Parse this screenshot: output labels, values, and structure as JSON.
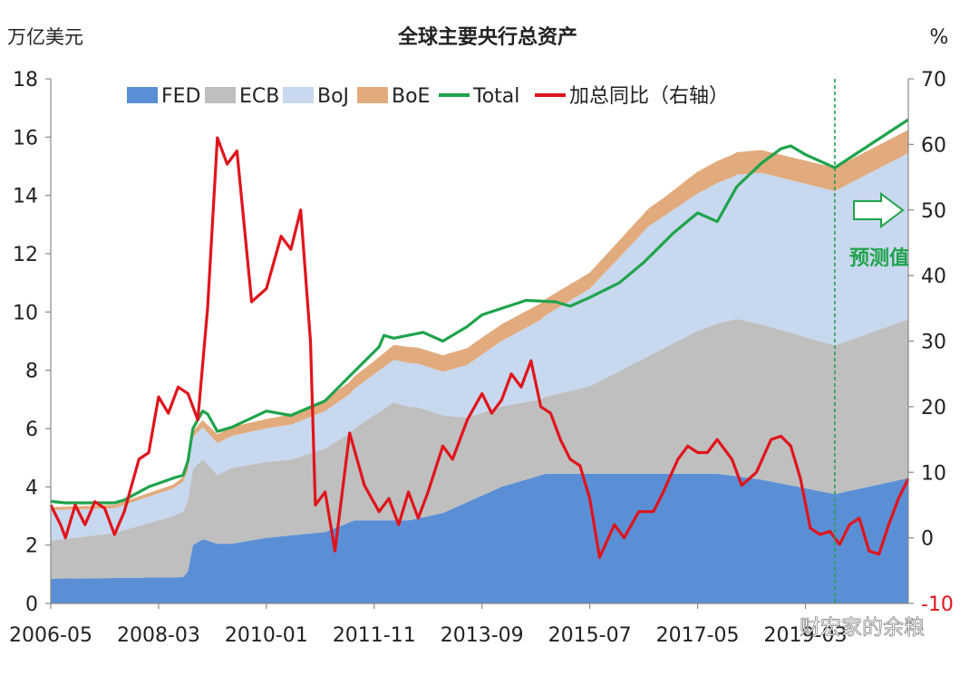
{
  "chart_data": {
    "type": "area",
    "title": "全球主要央行总资产",
    "ylabel_left": "万亿美元",
    "ylabel_right": "%",
    "ylim_left": [
      0,
      18
    ],
    "ylim_right": [
      -10,
      70
    ],
    "yticks_left": [
      "0",
      "2",
      "4",
      "6",
      "8",
      "10",
      "12",
      "14",
      "16",
      "18"
    ],
    "yticks_right": [
      "-10",
      "0",
      "10",
      "20",
      "30",
      "40",
      "50",
      "60",
      "70"
    ],
    "xticks": [
      "2006-05",
      "2008-03",
      "2010-01",
      "2011-11",
      "2013-09",
      "2015-07",
      "2017-05",
      "2019-03"
    ],
    "x_start": "2006-05",
    "x_end": "2020-12",
    "legend_position": "top",
    "forecast_start": "2019-09",
    "forecast_label": "预测值",
    "watermark": "财宏家的余粮",
    "colors": {
      "FED": "#5a8fd6",
      "ECB": "#bfbfbf",
      "BoJ": "#c8d8ee",
      "BoE": "#e2ab7d",
      "Total": "#1fa34c",
      "YoY": "#e0141c",
      "forecast": "#1fa34c"
    },
    "series": [
      {
        "name": "FED",
        "kind": "stacked-area",
        "points": [
          [
            "2006-05",
            0.85
          ],
          [
            "2007-06",
            0.87
          ],
          [
            "2008-08",
            0.9
          ],
          [
            "2008-09",
            1.1
          ],
          [
            "2008-10",
            2.0
          ],
          [
            "2008-12",
            2.2
          ],
          [
            "2009-03",
            2.05
          ],
          [
            "2009-06",
            2.05
          ],
          [
            "2010-01",
            2.25
          ],
          [
            "2011-01",
            2.45
          ],
          [
            "2011-07",
            2.85
          ],
          [
            "2012-06",
            2.85
          ],
          [
            "2013-01",
            3.1
          ],
          [
            "2014-01",
            4.0
          ],
          [
            "2014-10",
            4.45
          ],
          [
            "2017-09",
            4.45
          ],
          [
            "2018-06",
            4.25
          ],
          [
            "2019-09",
            3.75
          ],
          [
            "2020-12",
            4.3
          ]
        ]
      },
      {
        "name": "ECB",
        "kind": "stacked-area",
        "points": [
          [
            "2006-05",
            1.3
          ],
          [
            "2007-06",
            1.55
          ],
          [
            "2008-06",
            2.1
          ],
          [
            "2008-08",
            2.25
          ],
          [
            "2008-10",
            2.6
          ],
          [
            "2008-12",
            2.75
          ],
          [
            "2009-03",
            2.35
          ],
          [
            "2009-06",
            2.6
          ],
          [
            "2010-06",
            2.6
          ],
          [
            "2011-06",
            3.05
          ],
          [
            "2012-03",
            4.05
          ],
          [
            "2012-08",
            3.8
          ],
          [
            "2013-06",
            2.9
          ],
          [
            "2014-09",
            2.6
          ],
          [
            "2015-07",
            3.0
          ],
          [
            "2017-05",
            4.9
          ],
          [
            "2018-01",
            5.4
          ],
          [
            "2019-09",
            5.1
          ],
          [
            "2020-12",
            5.45
          ]
        ]
      },
      {
        "name": "BoJ",
        "kind": "stacked-area",
        "points": [
          [
            "2006-05",
            1.05
          ],
          [
            "2007-06",
            0.85
          ],
          [
            "2008-06",
            0.95
          ],
          [
            "2008-10",
            1.1
          ],
          [
            "2009-06",
            1.1
          ],
          [
            "2010-06",
            1.2
          ],
          [
            "2011-06",
            1.35
          ],
          [
            "2012-06",
            1.5
          ],
          [
            "2013-01",
            1.5
          ],
          [
            "2013-09",
            2.0
          ],
          [
            "2014-06",
            2.55
          ],
          [
            "2015-07",
            3.35
          ],
          [
            "2016-07",
            4.45
          ],
          [
            "2017-12",
            4.9
          ],
          [
            "2018-06",
            5.2
          ],
          [
            "2019-09",
            5.3
          ],
          [
            "2020-12",
            5.7
          ]
        ]
      },
      {
        "name": "BoE",
        "kind": "stacked-area",
        "points": [
          [
            "2006-05",
            0.1
          ],
          [
            "2008-06",
            0.13
          ],
          [
            "2009-03",
            0.3
          ],
          [
            "2010-01",
            0.32
          ],
          [
            "2011-11",
            0.45
          ],
          [
            "2012-06",
            0.55
          ],
          [
            "2013-09",
            0.58
          ],
          [
            "2015-07",
            0.55
          ],
          [
            "2016-10",
            0.63
          ],
          [
            "2017-05",
            0.75
          ],
          [
            "2018-05",
            0.78
          ],
          [
            "2019-09",
            0.8
          ],
          [
            "2020-12",
            0.8
          ]
        ]
      },
      {
        "name": "Total",
        "kind": "line-left",
        "points": [
          [
            "2006-05",
            3.5
          ],
          [
            "2006-08",
            3.45
          ],
          [
            "2007-06",
            3.45
          ],
          [
            "2007-08",
            3.55
          ],
          [
            "2008-01",
            4.0
          ],
          [
            "2008-06",
            4.3
          ],
          [
            "2008-08",
            4.4
          ],
          [
            "2008-09",
            4.9
          ],
          [
            "2008-10",
            6.0
          ],
          [
            "2008-12",
            6.6
          ],
          [
            "2009-01",
            6.5
          ],
          [
            "2009-03",
            5.9
          ],
          [
            "2009-06",
            6.05
          ],
          [
            "2010-01",
            6.6
          ],
          [
            "2010-06",
            6.45
          ],
          [
            "2011-01",
            6.95
          ],
          [
            "2011-06",
            7.8
          ],
          [
            "2011-12",
            8.8
          ],
          [
            "2012-01",
            9.2
          ],
          [
            "2012-03",
            9.1
          ],
          [
            "2012-09",
            9.3
          ],
          [
            "2013-01",
            9.0
          ],
          [
            "2013-06",
            9.5
          ],
          [
            "2013-09",
            9.9
          ],
          [
            "2014-06",
            10.4
          ],
          [
            "2014-12",
            10.35
          ],
          [
            "2015-03",
            10.2
          ],
          [
            "2015-07",
            10.5
          ],
          [
            "2016-01",
            11.0
          ],
          [
            "2016-06",
            11.7
          ],
          [
            "2016-12",
            12.7
          ],
          [
            "2017-05",
            13.4
          ],
          [
            "2017-09",
            13.1
          ],
          [
            "2018-01",
            14.3
          ],
          [
            "2018-06",
            15.1
          ],
          [
            "2018-10",
            15.6
          ],
          [
            "2018-12",
            15.7
          ],
          [
            "2019-03",
            15.4
          ],
          [
            "2019-09",
            14.95
          ],
          [
            "2020-12",
            16.6
          ]
        ]
      },
      {
        "name": "加总同比（右轴）",
        "kind": "line-right",
        "points": [
          [
            "2006-05",
            5
          ],
          [
            "2006-07",
            2
          ],
          [
            "2006-08",
            0
          ],
          [
            "2006-10",
            5
          ],
          [
            "2006-12",
            2
          ],
          [
            "2007-02",
            5.5
          ],
          [
            "2007-04",
            4.5
          ],
          [
            "2007-06",
            0.5
          ],
          [
            "2007-08",
            4
          ],
          [
            "2007-11",
            12
          ],
          [
            "2008-01",
            13
          ],
          [
            "2008-03",
            21.5
          ],
          [
            "2008-05",
            19
          ],
          [
            "2008-07",
            23
          ],
          [
            "2008-09",
            22
          ],
          [
            "2008-11",
            18
          ],
          [
            "2009-01",
            35
          ],
          [
            "2009-03",
            61
          ],
          [
            "2009-05",
            57
          ],
          [
            "2009-07",
            59
          ],
          [
            "2009-10",
            36
          ],
          [
            "2010-01",
            38
          ],
          [
            "2010-04",
            46
          ],
          [
            "2010-06",
            44
          ],
          [
            "2010-08",
            50
          ],
          [
            "2010-10",
            30
          ],
          [
            "2010-11",
            5
          ],
          [
            "2011-01",
            7
          ],
          [
            "2011-03",
            -2
          ],
          [
            "2011-06",
            16
          ],
          [
            "2011-09",
            8
          ],
          [
            "2011-12",
            4
          ],
          [
            "2012-02",
            6
          ],
          [
            "2012-04",
            2
          ],
          [
            "2012-06",
            7
          ],
          [
            "2012-08",
            3
          ],
          [
            "2012-10",
            7
          ],
          [
            "2013-01",
            14
          ],
          [
            "2013-03",
            12
          ],
          [
            "2013-06",
            18
          ],
          [
            "2013-09",
            22
          ],
          [
            "2013-11",
            19
          ],
          [
            "2014-01",
            21
          ],
          [
            "2014-03",
            25
          ],
          [
            "2014-05",
            23
          ],
          [
            "2014-07",
            27
          ],
          [
            "2014-09",
            20
          ],
          [
            "2014-11",
            19
          ],
          [
            "2015-01",
            15
          ],
          [
            "2015-03",
            12
          ],
          [
            "2015-05",
            11
          ],
          [
            "2015-07",
            6
          ],
          [
            "2015-09",
            -3
          ],
          [
            "2015-12",
            2
          ],
          [
            "2016-02",
            0
          ],
          [
            "2016-05",
            4
          ],
          [
            "2016-08",
            4
          ],
          [
            "2016-10",
            7
          ],
          [
            "2017-01",
            12
          ],
          [
            "2017-03",
            14
          ],
          [
            "2017-05",
            13
          ],
          [
            "2017-07",
            13
          ],
          [
            "2017-09",
            15
          ],
          [
            "2017-12",
            12
          ],
          [
            "2018-02",
            8
          ],
          [
            "2018-05",
            10
          ],
          [
            "2018-08",
            15
          ],
          [
            "2018-10",
            15.5
          ],
          [
            "2018-12",
            14
          ],
          [
            "2019-02",
            9
          ],
          [
            "2019-04",
            1.5
          ],
          [
            "2019-06",
            0.5
          ],
          [
            "2019-08",
            1
          ],
          [
            "2019-10",
            -1
          ],
          [
            "2019-12",
            2
          ],
          [
            "2020-02",
            3
          ],
          [
            "2020-04",
            -2
          ],
          [
            "2020-06",
            -2.5
          ],
          [
            "2020-08",
            2
          ],
          [
            "2020-10",
            6
          ],
          [
            "2020-12",
            9
          ]
        ]
      }
    ]
  }
}
